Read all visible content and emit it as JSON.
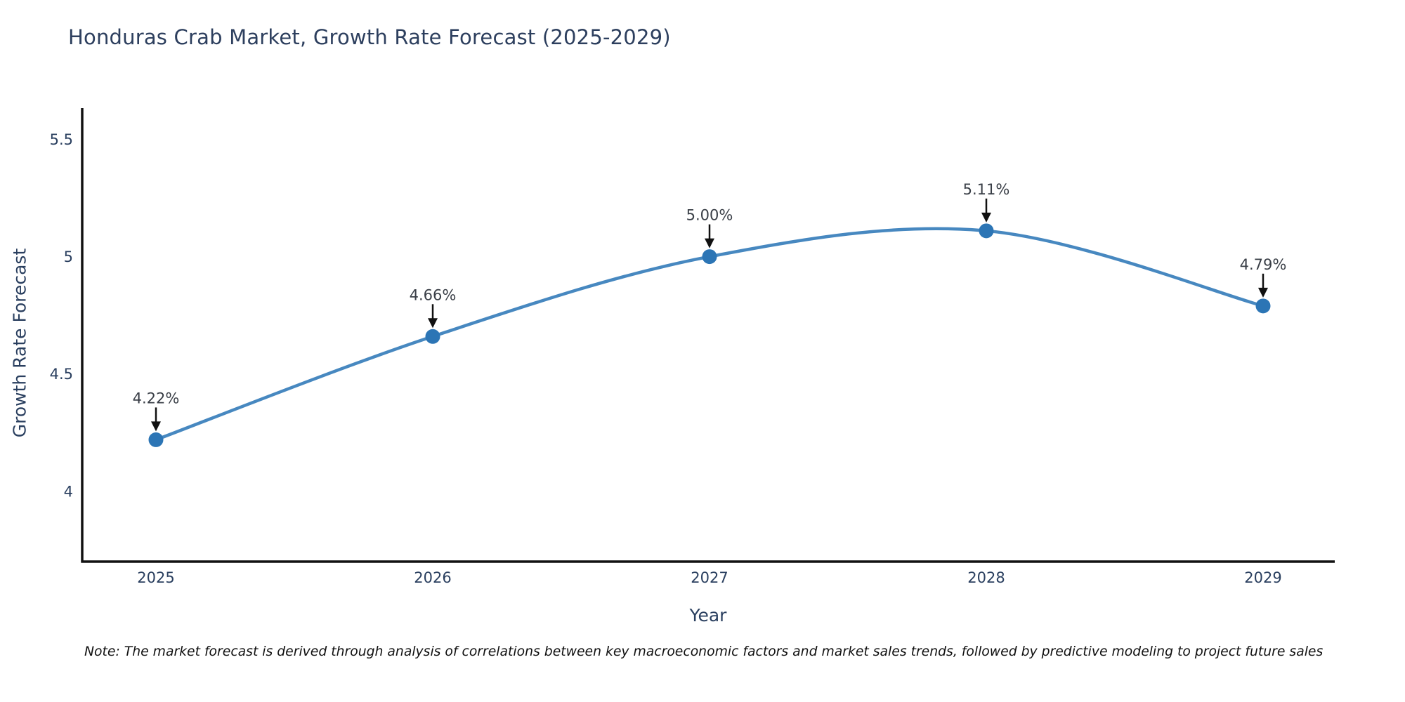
{
  "title": "Honduras Crab Market, Growth Rate Forecast (2025-2029)",
  "note": "Note: The market forecast is derived through analysis of correlations between key macroeconomic factors and market sales trends, followed by predictive modeling to project future sales",
  "chart_data": {
    "type": "line",
    "title": "Honduras Crab Market, Growth Rate Forecast (2025-2029)",
    "xlabel": "Year",
    "ylabel": "Growth Rate Forecast",
    "x": [
      "2025",
      "2026",
      "2027",
      "2028",
      "2029"
    ],
    "values": [
      4.22,
      4.66,
      5.0,
      5.11,
      4.79
    ],
    "point_labels": [
      "4.22%",
      "4.66%",
      "5.00%",
      "5.11%",
      "4.79%"
    ],
    "yticks": [
      4,
      4.5,
      5,
      5.5
    ],
    "ytick_labels": [
      "4",
      "4.5",
      "5",
      "5.5"
    ],
    "ylim": [
      3.7,
      5.63
    ],
    "line_shape": "spline",
    "grid": "off",
    "legend": "none",
    "colors": {
      "line": "#4788c0",
      "marker": "#2c75b5",
      "axis": "#111111",
      "text": "#2a3f5f",
      "annotation_text": "#3a3f47",
      "arrow": "#111111"
    }
  }
}
